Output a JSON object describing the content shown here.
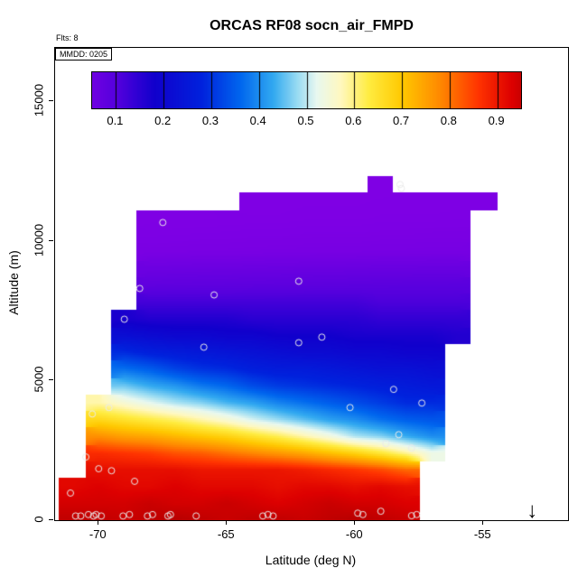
{
  "title": "ORCAS RF08 socn_air_FMPD",
  "annotations": {
    "flights": "Flts: 8",
    "date_box": "MMDD: 0205",
    "arrow_glyph": "↓"
  },
  "colors": {
    "background": "#ffffff",
    "axis": "#000000",
    "scatter_ring": "#ebebeb"
  },
  "axes": {
    "x": {
      "label": "Latitude (deg N)",
      "lim": [
        -71.7,
        -51.7
      ],
      "ticks": [
        -70,
        -65,
        -60,
        -55
      ],
      "tick_labels": [
        "-70",
        "-65",
        "-60",
        "-55"
      ]
    },
    "y": {
      "label": "Altitude (m)",
      "lim": [
        0,
        16900
      ],
      "ticks": [
        0,
        5000,
        10000,
        15000
      ],
      "tick_labels": [
        "0",
        "5000",
        "10000",
        "15000"
      ]
    }
  },
  "colorbar": {
    "range": [
      0.05,
      0.95
    ],
    "tick_values": [
      0.1,
      0.2,
      0.3,
      0.4,
      0.5,
      0.6,
      0.7,
      0.8,
      0.9
    ],
    "tick_labels": [
      "0.1",
      "0.2",
      "0.3",
      "0.4",
      "0.5",
      "0.6",
      "0.7",
      "0.8",
      "0.9"
    ],
    "stops": [
      [
        0.0,
        "#8A00E6"
      ],
      [
        0.1,
        "#5500DD"
      ],
      [
        0.18,
        "#1100CC"
      ],
      [
        0.28,
        "#0022DD"
      ],
      [
        0.36,
        "#0066EE"
      ],
      [
        0.43,
        "#33AAF0"
      ],
      [
        0.48,
        "#99DCF2"
      ],
      [
        0.52,
        "#E8F8F0"
      ],
      [
        0.57,
        "#FFF8C0"
      ],
      [
        0.63,
        "#FFEC40"
      ],
      [
        0.7,
        "#FFC800"
      ],
      [
        0.78,
        "#FF8800"
      ],
      [
        0.86,
        "#FF3300"
      ],
      [
        0.93,
        "#DD0000"
      ],
      [
        1.0,
        "#990000"
      ]
    ]
  },
  "chart_data": {
    "type": "heatmap",
    "title": "ORCAS RF08 socn_air_FMPD",
    "xlabel": "Latitude (deg N)",
    "ylabel": "Altitude (m)",
    "xlim": [
      -71.7,
      -51.7
    ],
    "ylim": [
      0,
      16900
    ],
    "value_range": [
      0.05,
      0.95
    ],
    "lat_bins": [
      -71,
      -70,
      -69,
      -68,
      -67,
      -66,
      -65,
      -64,
      -63,
      -62,
      -61,
      -60,
      -59,
      -58,
      -57,
      -56,
      -55
    ],
    "alt_bins": [
      0,
      600,
      1200,
      1800,
      2400,
      3000,
      3600,
      4200,
      4800,
      5400,
      6000,
      6600,
      7200,
      7800,
      8400,
      9000,
      9600,
      10200,
      10800,
      11400,
      12000
    ],
    "values": [
      [
        0.96,
        0.96,
        0.95,
        0.96,
        0.97,
        0.96,
        0.95,
        0.96,
        0.96,
        0.95,
        0.96,
        0.97,
        0.96,
        0.95,
        null,
        null,
        null
      ],
      [
        0.94,
        0.94,
        0.94,
        0.95,
        0.94,
        0.94,
        0.95,
        0.94,
        0.93,
        0.94,
        0.95,
        0.94,
        0.94,
        0.93,
        null,
        null,
        null
      ],
      [
        0.92,
        0.93,
        0.92,
        0.92,
        0.93,
        0.92,
        0.92,
        0.92,
        0.91,
        0.92,
        0.92,
        0.91,
        0.92,
        0.91,
        null,
        null,
        null
      ],
      [
        null,
        0.91,
        0.91,
        0.91,
        0.91,
        0.9,
        0.9,
        0.9,
        0.9,
        0.89,
        0.875,
        0.86,
        0.84,
        0.81,
        null,
        null,
        null
      ],
      [
        null,
        0.87,
        0.86,
        0.85,
        0.83,
        0.82,
        0.8,
        0.78,
        0.76,
        0.74,
        0.71,
        0.68,
        0.64,
        0.59,
        0.53,
        null,
        null
      ],
      [
        null,
        0.77,
        0.75,
        0.74,
        0.72,
        0.7,
        0.68,
        0.65,
        0.62,
        0.58,
        0.54,
        0.49,
        0.47,
        0.43,
        0.4,
        null,
        null
      ],
      [
        null,
        0.67,
        0.65,
        0.63,
        0.61,
        0.58,
        0.55,
        0.51,
        0.48,
        0.45,
        0.42,
        0.4,
        0.37,
        0.35,
        0.34,
        null,
        null
      ],
      [
        null,
        0.58,
        0.55,
        0.52,
        0.49,
        0.47,
        0.44,
        0.42,
        0.39,
        0.37,
        0.35,
        0.33,
        0.31,
        0.29,
        0.29,
        null,
        null
      ],
      [
        null,
        null,
        0.46,
        0.43,
        0.41,
        0.38,
        0.36,
        0.33,
        0.31,
        0.3,
        0.29,
        0.28,
        0.27,
        0.26,
        0.25,
        null,
        null
      ],
      [
        null,
        null,
        0.37,
        0.35,
        0.32,
        0.3,
        0.29,
        0.27,
        0.26,
        0.26,
        0.25,
        0.24,
        0.23,
        0.23,
        0.22,
        null,
        null
      ],
      [
        null,
        null,
        0.29,
        0.27,
        0.26,
        0.25,
        0.24,
        0.23,
        0.22,
        0.21,
        0.21,
        0.2,
        0.2,
        0.19,
        0.19,
        null,
        null
      ],
      [
        null,
        null,
        0.22,
        0.21,
        0.2,
        0.2,
        0.19,
        0.19,
        0.18,
        0.18,
        0.18,
        0.17,
        0.17,
        0.17,
        0.17,
        0.16,
        null
      ],
      [
        null,
        null,
        0.17,
        0.16,
        0.16,
        0.16,
        0.16,
        0.15,
        0.15,
        0.15,
        0.15,
        0.15,
        0.14,
        0.14,
        0.14,
        0.14,
        null
      ],
      [
        null,
        null,
        null,
        0.12,
        0.12,
        0.12,
        0.12,
        0.12,
        0.12,
        0.12,
        0.12,
        0.12,
        0.11,
        0.11,
        0.11,
        0.11,
        null
      ],
      [
        null,
        null,
        null,
        0.08,
        0.081,
        0.082,
        0.083,
        0.084,
        0.085,
        0.086,
        0.087,
        0.088,
        0.089,
        0.09,
        0.09,
        0.091,
        null
      ],
      [
        null,
        null,
        null,
        0.056,
        0.057,
        0.058,
        0.058,
        0.059,
        0.06,
        0.061,
        0.061,
        0.062,
        0.063,
        0.063,
        0.064,
        0.064,
        null
      ],
      [
        null,
        null,
        null,
        0.03,
        0.031,
        0.032,
        0.032,
        0.033,
        0.034,
        0.034,
        0.035,
        0.035,
        0.036,
        0.036,
        0.037,
        0.037,
        null
      ],
      [
        null,
        null,
        null,
        0.025,
        0.025,
        0.026,
        0.026,
        0.027,
        0.027,
        0.028,
        0.028,
        0.028,
        0.029,
        0.029,
        0.03,
        0.03,
        null
      ],
      [
        null,
        null,
        null,
        0.02,
        0.021,
        0.021,
        0.022,
        0.022,
        0.022,
        0.023,
        0.023,
        0.023,
        0.024,
        0.024,
        0.024,
        0.025,
        null
      ],
      [
        null,
        null,
        null,
        null,
        null,
        null,
        null,
        0.02,
        0.02,
        0.021,
        0.021,
        0.021,
        0.022,
        0.022,
        0.022,
        0.022,
        0.022
      ],
      [
        null,
        null,
        null,
        null,
        null,
        null,
        null,
        null,
        null,
        null,
        null,
        null,
        0.02,
        null,
        null,
        null,
        null
      ]
    ],
    "scatter_points": [
      [
        -70.9,
        150
      ],
      [
        -70.7,
        150
      ],
      [
        -70.4,
        200
      ],
      [
        -70.2,
        150
      ],
      [
        -70.1,
        200
      ],
      [
        -69.9,
        150
      ],
      [
        -69.05,
        150
      ],
      [
        -68.8,
        200
      ],
      [
        -68.1,
        150
      ],
      [
        -67.9,
        200
      ],
      [
        -67.3,
        150
      ],
      [
        -67.2,
        200
      ],
      [
        -66.2,
        150
      ],
      [
        -63.6,
        150
      ],
      [
        -63.4,
        200
      ],
      [
        -63.2,
        150
      ],
      [
        -59.9,
        250
      ],
      [
        -59.7,
        200
      ],
      [
        -59.0,
        320
      ],
      [
        -57.8,
        160
      ],
      [
        -57.6,
        200
      ],
      [
        -71.1,
        970
      ],
      [
        -70.5,
        2260
      ],
      [
        -70.0,
        1840
      ],
      [
        -69.5,
        1770
      ],
      [
        -68.6,
        1390
      ],
      [
        -70.25,
        3800
      ],
      [
        -69.6,
        4030
      ],
      [
        -69.0,
        7190
      ],
      [
        -68.4,
        8290
      ],
      [
        -67.5,
        10650
      ],
      [
        -65.5,
        8060
      ],
      [
        -65.9,
        6190
      ],
      [
        -62.2,
        8550
      ],
      [
        -62.2,
        6350
      ],
      [
        -61.3,
        6550
      ],
      [
        -60.2,
        4030
      ],
      [
        -58.5,
        4680
      ],
      [
        -57.4,
        4190
      ],
      [
        -58.3,
        3060
      ],
      [
        -58.8,
        2740
      ],
      [
        -57.8,
        2580
      ],
      [
        -58.2,
        11870
      ],
      [
        -58.25,
        12010
      ]
    ],
    "arrow_marker": {
      "lat": -53.1,
      "alt": 0
    }
  }
}
